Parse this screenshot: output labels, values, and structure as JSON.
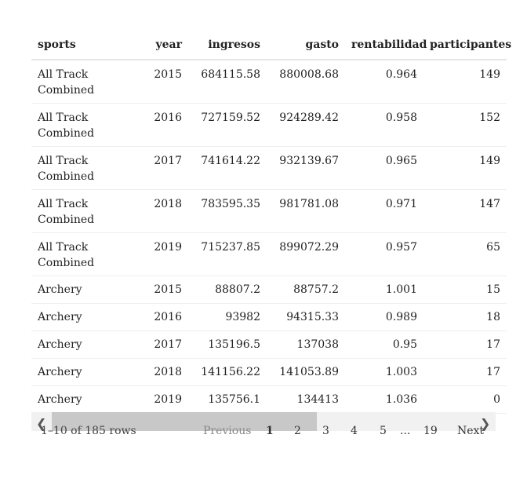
{
  "table": {
    "headers": [
      "sports",
      "year",
      "ingresos",
      "gasto",
      "rentabilidad",
      "participantes"
    ],
    "rows": [
      {
        "sports": "All Track Combined",
        "year": "2015",
        "ingresos": "684115.58",
        "gasto": "880008.68",
        "rentabilidad": "0.964",
        "participantes": "149"
      },
      {
        "sports": "All Track Combined",
        "year": "2016",
        "ingresos": "727159.52",
        "gasto": "924289.42",
        "rentabilidad": "0.958",
        "participantes": "152"
      },
      {
        "sports": "All Track Combined",
        "year": "2017",
        "ingresos": "741614.22",
        "gasto": "932139.67",
        "rentabilidad": "0.965",
        "participantes": "149"
      },
      {
        "sports": "All Track Combined",
        "year": "2018",
        "ingresos": "783595.35",
        "gasto": "981781.08",
        "rentabilidad": "0.971",
        "participantes": "147"
      },
      {
        "sports": "All Track Combined",
        "year": "2019",
        "ingresos": "715237.85",
        "gasto": "899072.29",
        "rentabilidad": "0.957",
        "participantes": "65"
      },
      {
        "sports": "Archery",
        "year": "2015",
        "ingresos": "88807.2",
        "gasto": "88757.2",
        "rentabilidad": "1.001",
        "participantes": "15"
      },
      {
        "sports": "Archery",
        "year": "2016",
        "ingresos": "93982",
        "gasto": "94315.33",
        "rentabilidad": "0.989",
        "participantes": "18"
      },
      {
        "sports": "Archery",
        "year": "2017",
        "ingresos": "135196.5",
        "gasto": "137038",
        "rentabilidad": "0.95",
        "participantes": "17"
      },
      {
        "sports": "Archery",
        "year": "2018",
        "ingresos": "141156.22",
        "gasto": "141053.89",
        "rentabilidad": "1.003",
        "participantes": "17"
      },
      {
        "sports": "Archery",
        "year": "2019",
        "ingresos": "135756.1",
        "gasto": "134413",
        "rentabilidad": "1.036",
        "participantes": "0"
      }
    ]
  },
  "footer": {
    "info": "1–10 of 185 rows",
    "previous": "Previous",
    "pages": [
      "1",
      "2",
      "3",
      "4",
      "5"
    ],
    "ellipsis": "...",
    "last_page": "19",
    "next": "Next",
    "current_page": "1"
  },
  "scrollbar": {
    "left_arrow_icon": "chevron-left-icon",
    "right_arrow_icon": "chevron-right-icon"
  }
}
